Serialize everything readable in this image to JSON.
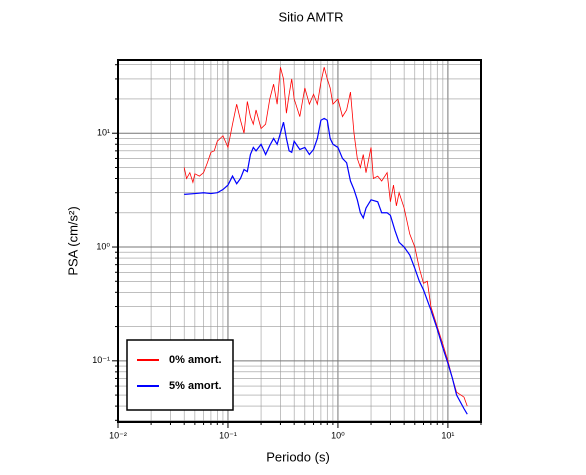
{
  "chart_data": {
    "type": "line",
    "title": "Sitio AMTR",
    "x_label": "Periodo (s)",
    "y_label": "PSA (cm/s²)",
    "log_x": true,
    "log_y": true,
    "grid": true,
    "legend": "lower left",
    "xlim": [
      0.01,
      20
    ],
    "ylim": [
      0.029,
      44
    ],
    "xticks": [
      {
        "value": 0.01,
        "label": "10⁻²"
      },
      {
        "value": 0.1,
        "label": "10⁻¹"
      },
      {
        "value": 1,
        "label": "10⁰"
      },
      {
        "value": 10,
        "label": "10¹"
      }
    ],
    "yticks": [
      {
        "value": 0.1,
        "label": "10⁻¹"
      },
      {
        "value": 1,
        "label": "10⁰"
      },
      {
        "value": 10,
        "label": "10¹"
      }
    ],
    "series": [
      {
        "name": "0% amort.",
        "color": "#ff0000",
        "x": [
          0.04,
          0.042,
          0.045,
          0.048,
          0.05,
          0.055,
          0.06,
          0.065,
          0.07,
          0.075,
          0.08,
          0.09,
          0.1,
          0.11,
          0.12,
          0.13,
          0.14,
          0.15,
          0.16,
          0.17,
          0.18,
          0.2,
          0.22,
          0.24,
          0.26,
          0.28,
          0.3,
          0.32,
          0.34,
          0.36,
          0.38,
          0.4,
          0.45,
          0.5,
          0.55,
          0.6,
          0.65,
          0.7,
          0.75,
          0.8,
          0.85,
          0.9,
          1.0,
          1.1,
          1.2,
          1.3,
          1.4,
          1.5,
          1.6,
          1.7,
          1.8,
          2.0,
          2.1,
          2.3,
          2.5,
          2.8,
          3.0,
          3.2,
          3.4,
          3.6,
          4.0,
          4.5,
          5.0,
          5.5,
          6,
          6.5,
          7,
          8,
          9,
          10,
          11,
          12,
          14,
          15
        ],
        "values": [
          5.0,
          4.0,
          4.5,
          3.7,
          4.4,
          4.2,
          4.5,
          5.5,
          6.8,
          7.0,
          8.5,
          9.5,
          7.5,
          12,
          18,
          13,
          10,
          19,
          14,
          12,
          16,
          11,
          12,
          20,
          27,
          18,
          38,
          30,
          15,
          22,
          30,
          20,
          14,
          25,
          18,
          22,
          18,
          28,
          38,
          30,
          25,
          18,
          20,
          14,
          16,
          23,
          10,
          6,
          5,
          6.5,
          4.5,
          7.5,
          4,
          4.2,
          3.8,
          4.5,
          2.5,
          3.5,
          2.3,
          3,
          2.2,
          1.3,
          1.0,
          0.65,
          0.48,
          0.5,
          0.3,
          0.2,
          0.14,
          0.1,
          0.07,
          0.053,
          0.048,
          0.04
        ]
      },
      {
        "name": "5% amort.",
        "color": "#0000ff",
        "x": [
          0.04,
          0.05,
          0.06,
          0.07,
          0.08,
          0.09,
          0.1,
          0.11,
          0.12,
          0.13,
          0.14,
          0.15,
          0.16,
          0.17,
          0.18,
          0.2,
          0.22,
          0.24,
          0.26,
          0.28,
          0.3,
          0.32,
          0.34,
          0.36,
          0.38,
          0.4,
          0.45,
          0.5,
          0.55,
          0.6,
          0.65,
          0.7,
          0.75,
          0.8,
          0.85,
          0.9,
          1.0,
          1.1,
          1.2,
          1.3,
          1.4,
          1.5,
          1.6,
          1.7,
          1.8,
          2.0,
          2.3,
          2.5,
          2.8,
          3.0,
          3.3,
          3.6,
          4.0,
          4.5,
          5.0,
          5.5,
          6,
          7,
          8,
          9,
          10,
          11,
          12,
          14,
          15
        ],
        "values": [
          2.9,
          2.95,
          3.0,
          2.95,
          3.0,
          3.2,
          3.5,
          4.2,
          3.6,
          4.0,
          4.8,
          4.6,
          6.5,
          7.5,
          7.0,
          8.0,
          6.5,
          7.8,
          9,
          8,
          10,
          12.5,
          9,
          7,
          6.8,
          8.5,
          7.2,
          7.5,
          6.5,
          7.2,
          9,
          13,
          13.5,
          13,
          9,
          8,
          7.5,
          6,
          5.5,
          3.8,
          3.2,
          2.6,
          2.0,
          1.8,
          2.2,
          2.6,
          2.5,
          2.0,
          2.0,
          1.9,
          1.4,
          1.1,
          1.0,
          0.85,
          0.65,
          0.5,
          0.42,
          0.28,
          0.19,
          0.13,
          0.095,
          0.07,
          0.05,
          0.038,
          0.034
        ]
      }
    ]
  }
}
